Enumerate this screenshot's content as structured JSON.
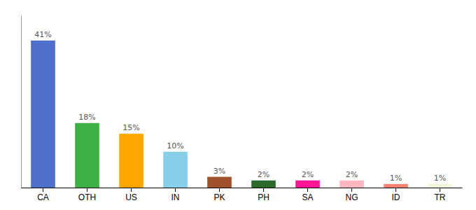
{
  "chart_data": {
    "type": "bar",
    "categories": [
      "CA",
      "OTH",
      "US",
      "IN",
      "PK",
      "PH",
      "SA",
      "NG",
      "ID",
      "TR"
    ],
    "values": [
      41,
      18,
      15,
      10,
      3,
      2,
      2,
      2,
      1,
      1
    ],
    "value_labels": [
      "41%",
      "18%",
      "15%",
      "10%",
      "3%",
      "2%",
      "2%",
      "2%",
      "1%",
      "1%"
    ],
    "colors": [
      "#4f6fcc",
      "#3cb043",
      "#ffa500",
      "#87ceeb",
      "#a0522d",
      "#2d6a2d",
      "#ff1493",
      "#ffb6c1",
      "#fa8072",
      "#f5f5dc"
    ],
    "ylim": [
      0,
      48
    ],
    "data_labels": true,
    "tick_labels": "x",
    "grid": false
  }
}
